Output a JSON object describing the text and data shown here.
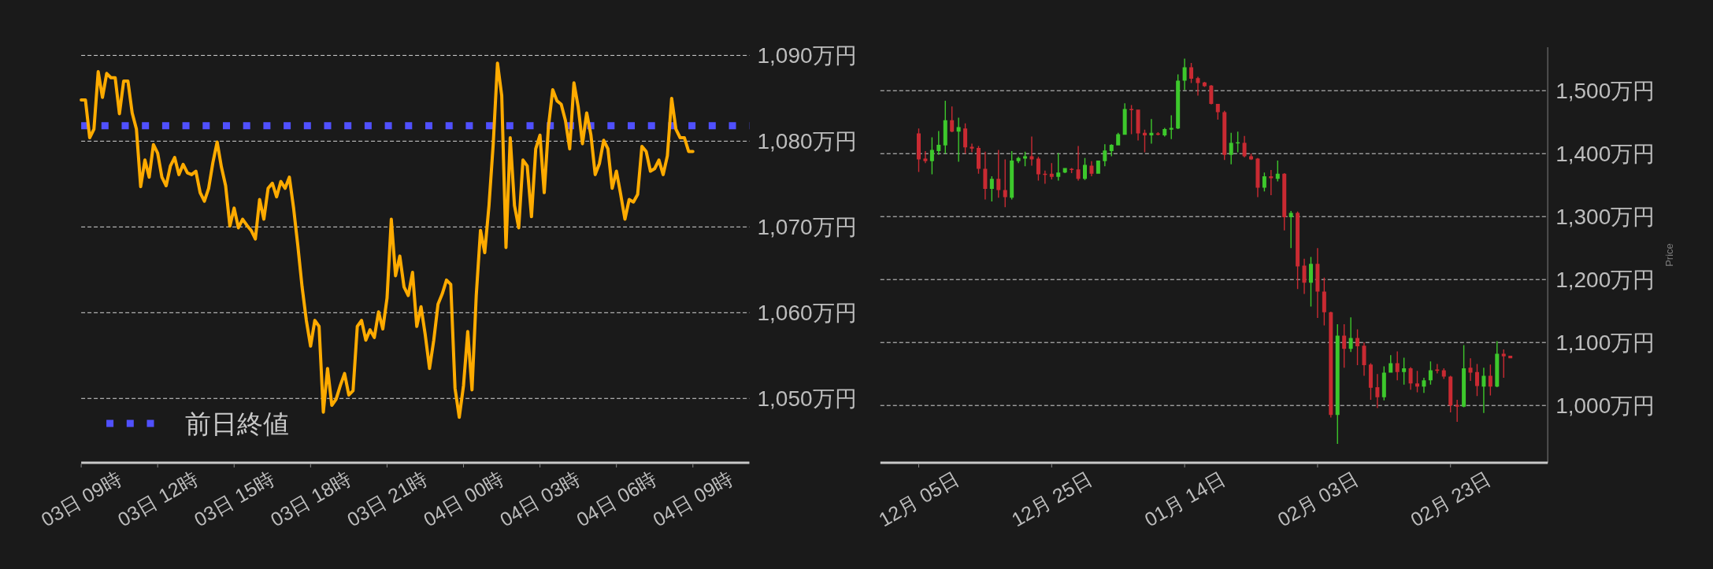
{
  "chart_data": [
    {
      "type": "line",
      "categories": [
        "03日 09時",
        null,
        null,
        null,
        null,
        null,
        null,
        null,
        null,
        null,
        null,
        null,
        null,
        null,
        null,
        null,
        null,
        null,
        "03日 12時",
        null,
        null,
        null,
        null,
        null,
        null,
        null,
        null,
        null,
        null,
        null,
        null,
        null,
        null,
        null,
        null,
        null,
        "03日 15時",
        null,
        null,
        null,
        null,
        null,
        null,
        null,
        null,
        null,
        null,
        null,
        null,
        null,
        null,
        null,
        null,
        null,
        "03日 18時",
        null,
        null,
        null,
        null,
        null,
        null,
        null,
        null,
        null,
        null,
        null,
        null,
        null,
        null,
        null,
        null,
        null,
        "03日 21時",
        null,
        null,
        null,
        null,
        null,
        null,
        null,
        null,
        null,
        null,
        null,
        null,
        null,
        null,
        null,
        null,
        null,
        "04日 00時",
        null,
        null,
        null,
        null,
        null,
        null,
        null,
        null,
        null,
        null,
        null,
        null,
        null,
        null,
        null,
        null,
        null,
        "04日 03時",
        null,
        null,
        null,
        null,
        null,
        null,
        null,
        null,
        null,
        null,
        null,
        null,
        null,
        null,
        null,
        null,
        null,
        "04日 06時",
        null,
        null,
        null,
        null,
        null,
        null,
        null,
        null,
        null,
        null,
        null,
        null,
        null,
        null,
        null,
        null,
        null,
        "04日 09時"
      ],
      "series": [
        {
          "color": "#ffab00",
          "values": [
            1084.8,
            1084.8,
            1080.4,
            1081.4,
            1088.1,
            1085.1,
            1087.9,
            1087.4,
            1087.4,
            1083.2,
            1087.0,
            1087.0,
            1083.3,
            1081.4,
            1074.7,
            1077.8,
            1075.8,
            1079.6,
            1078.6,
            1075.8,
            1074.8,
            1077.1,
            1078.1,
            1076.1,
            1077.3,
            1076.3,
            1076.1,
            1076.5,
            1074.0,
            1073.0,
            1074.5,
            1077.5,
            1079.9,
            1077.0,
            1074.8,
            1070.1,
            1072.2,
            1069.9,
            1070.9,
            1070.2,
            1069.6,
            1068.6,
            1073.2,
            1070.9,
            1074.5,
            1075.1,
            1073.5,
            1075.3,
            1074.5,
            1075.8,
            1072.2,
            1067.8,
            1063.0,
            1059.1,
            1056.1,
            1059.1,
            1058.4,
            1048.4,
            1053.5,
            1049.2,
            1049.9,
            1051.5,
            1052.9,
            1050.4,
            1050.9,
            1058.4,
            1059.1,
            1056.8,
            1058.0,
            1057.1,
            1060.1,
            1058.1,
            1061.7,
            1070.9,
            1064.3,
            1066.6,
            1063.0,
            1062.0,
            1064.7,
            1058.4,
            1060.7,
            1057.4,
            1053.5,
            1056.8,
            1061.0,
            1062.2,
            1063.8,
            1063.3,
            1051.2,
            1047.8,
            1051.5,
            1057.8,
            1051.0,
            1062.0,
            1069.6,
            1067.0,
            1072.5,
            1079.7,
            1089.1,
            1085.3,
            1067.6,
            1080.4,
            1072.5,
            1069.9,
            1077.8,
            1077.1,
            1071.2,
            1079.1,
            1080.7,
            1074.0,
            1081.7,
            1086.0,
            1084.7,
            1084.3,
            1082.4,
            1079.1,
            1086.8,
            1084.0,
            1079.7,
            1083.3,
            1080.7,
            1076.1,
            1077.4,
            1080.1,
            1079.1,
            1074.5,
            1076.5,
            1073.8,
            1070.9,
            1073.2,
            1072.9,
            1073.8,
            1079.4,
            1078.8,
            1076.5,
            1076.8,
            1077.8,
            1076.1,
            1078.3,
            1085.0,
            1081.4,
            1080.4,
            1080.4,
            1078.8,
            1078.8
          ]
        }
      ],
      "ylim": [
        1042.5,
        1090
      ],
      "yticks": [
        {
          "value": 1050,
          "label": "1,050万円"
        },
        {
          "value": 1060,
          "label": "1,060万円"
        },
        {
          "value": 1070,
          "label": "1,070万円"
        },
        {
          "value": 1080,
          "label": "1,080万円"
        },
        {
          "value": 1090,
          "label": "1,090万円"
        }
      ],
      "grid": "y",
      "ref_lines": [
        {
          "axis": "y",
          "value": 1081.8,
          "label": "前日終値",
          "color": "#5050ff",
          "line_style": "dotted"
        }
      ],
      "legend": "bottom left"
    },
    {
      "type": "candlestick",
      "categories": [
        "12月 05日",
        null,
        null,
        null,
        null,
        null,
        null,
        null,
        null,
        null,
        null,
        null,
        null,
        null,
        null,
        null,
        null,
        null,
        null,
        null,
        "12月 25日",
        null,
        null,
        null,
        null,
        null,
        null,
        null,
        null,
        null,
        null,
        null,
        null,
        null,
        null,
        null,
        null,
        null,
        null,
        null,
        "01月 14日",
        null,
        null,
        null,
        null,
        null,
        null,
        null,
        null,
        null,
        null,
        null,
        null,
        null,
        null,
        null,
        null,
        null,
        null,
        null,
        "02月 03日",
        null,
        null,
        null,
        null,
        null,
        null,
        null,
        null,
        null,
        null,
        null,
        null,
        null,
        null,
        null,
        null,
        null,
        null,
        null,
        "02月 23日",
        null,
        null,
        null,
        null,
        null,
        null,
        null,
        null,
        null
      ],
      "ohlc": [
        [
          1432,
          1440,
          1371,
          1391
        ],
        [
          1392,
          1404,
          1385,
          1388
        ],
        [
          1388,
          1426,
          1367,
          1406
        ],
        [
          1404,
          1436,
          1398,
          1414
        ],
        [
          1413,
          1484,
          1400,
          1453
        ],
        [
          1453,
          1475,
          1434,
          1435
        ],
        [
          1435,
          1457,
          1387,
          1442
        ],
        [
          1440,
          1448,
          1400,
          1410
        ],
        [
          1411,
          1416,
          1402,
          1408
        ],
        [
          1409,
          1412,
          1368,
          1376
        ],
        [
          1376,
          1403,
          1327,
          1344
        ],
        [
          1344,
          1364,
          1324,
          1360
        ],
        [
          1360,
          1406,
          1330,
          1342
        ],
        [
          1342,
          1391,
          1315,
          1331
        ],
        [
          1330,
          1404,
          1327,
          1389
        ],
        [
          1388,
          1395,
          1385,
          1393
        ],
        [
          1392,
          1403,
          1380,
          1396
        ],
        [
          1396,
          1427,
          1381,
          1391
        ],
        [
          1392,
          1395,
          1357,
          1367
        ],
        [
          1368,
          1373,
          1352,
          1367
        ],
        [
          1368,
          1385,
          1359,
          1363
        ],
        [
          1363,
          1401,
          1357,
          1370
        ],
        [
          1370,
          1377,
          1369,
          1377
        ],
        [
          1376,
          1377,
          1369,
          1374
        ],
        [
          1375,
          1412,
          1357,
          1360
        ],
        [
          1360,
          1393,
          1358,
          1382
        ],
        [
          1381,
          1388,
          1364,
          1368
        ],
        [
          1368,
          1389,
          1368,
          1389
        ],
        [
          1388,
          1415,
          1380,
          1405
        ],
        [
          1404,
          1415,
          1396,
          1414
        ],
        [
          1413,
          1433,
          1413,
          1431
        ],
        [
          1430,
          1480,
          1430,
          1471
        ],
        [
          1471,
          1477,
          1431,
          1469
        ],
        [
          1470,
          1470,
          1421,
          1432
        ],
        [
          1433,
          1438,
          1402,
          1429
        ],
        [
          1429,
          1455,
          1416,
          1433
        ],
        [
          1432,
          1434,
          1429,
          1430
        ],
        [
          1429,
          1441,
          1427,
          1439
        ],
        [
          1438,
          1461,
          1423,
          1441
        ],
        [
          1440,
          1526,
          1439,
          1516
        ],
        [
          1516,
          1551,
          1501,
          1537
        ],
        [
          1537,
          1544,
          1512,
          1519
        ],
        [
          1520,
          1522,
          1492,
          1512
        ],
        [
          1513,
          1514,
          1506,
          1507
        ],
        [
          1508,
          1509,
          1478,
          1479
        ],
        [
          1479,
          1479,
          1454,
          1466
        ],
        [
          1466,
          1468,
          1390,
          1398
        ],
        [
          1398,
          1433,
          1383,
          1417
        ],
        [
          1417,
          1435,
          1402,
          1418
        ],
        [
          1417,
          1428,
          1394,
          1396
        ],
        [
          1396,
          1400,
          1390,
          1391
        ],
        [
          1392,
          1393,
          1331,
          1346
        ],
        [
          1346,
          1370,
          1340,
          1364
        ],
        [
          1364,
          1374,
          1334,
          1361
        ],
        [
          1360,
          1389,
          1356,
          1368
        ],
        [
          1368,
          1369,
          1278,
          1299
        ],
        [
          1299,
          1309,
          1250,
          1306
        ],
        [
          1306,
          1308,
          1185,
          1221
        ],
        [
          1222,
          1233,
          1177,
          1195
        ],
        [
          1195,
          1236,
          1157,
          1225
        ],
        [
          1225,
          1250,
          1139,
          1181
        ],
        [
          1181,
          1203,
          1127,
          1148
        ],
        [
          1148,
          1149,
          981,
          985
        ],
        [
          985,
          1129,
          939,
          1111
        ],
        [
          1111,
          1129,
          1060,
          1090
        ],
        [
          1090,
          1140,
          1085,
          1107
        ],
        [
          1107,
          1121,
          1064,
          1094
        ],
        [
          1095,
          1100,
          1047,
          1064
        ],
        [
          1065,
          1067,
          1009,
          1028
        ],
        [
          1029,
          1050,
          996,
          1013
        ],
        [
          1013,
          1062,
          1008,
          1052
        ],
        [
          1052,
          1080,
          1052,
          1067
        ],
        [
          1067,
          1086,
          1040,
          1053
        ],
        [
          1053,
          1076,
          1033,
          1059
        ],
        [
          1059,
          1061,
          1025,
          1035
        ],
        [
          1035,
          1055,
          1021,
          1030
        ],
        [
          1030,
          1044,
          1020,
          1040
        ],
        [
          1040,
          1070,
          1033,
          1056
        ],
        [
          1057,
          1066,
          1051,
          1055
        ],
        [
          1056,
          1059,
          1042,
          1046
        ],
        [
          1046,
          1047,
          989,
          1000
        ],
        [
          1001,
          1009,
          974,
          998
        ],
        [
          998,
          1096,
          997,
          1059
        ],
        [
          1060,
          1075,
          1039,
          1052
        ],
        [
          1053,
          1066,
          1015,
          1031
        ],
        [
          1030,
          1060,
          988,
          1047
        ],
        [
          1047,
          1065,
          1016,
          1030
        ],
        [
          1030,
          1102,
          1029,
          1082
        ],
        [
          1082,
          1089,
          1044,
          1078
        ],
        [
          1079,
          1079,
          1075,
          1075
        ]
      ],
      "colors": [
        "#c92a32",
        "#c92a32",
        "#3dc82c",
        "#3dc82c",
        "#3dc82c",
        "#c92a32",
        "#3dc82c",
        "#c92a32",
        "#c92a32",
        "#c92a32",
        "#c92a32",
        "#3dc82c",
        "#c92a32",
        "#c92a32",
        "#3dc82c",
        "#3dc82c",
        "#3dc82c",
        "#c92a32",
        "#c92a32",
        "#c92a32",
        "#c92a32",
        "#3dc82c",
        "#3dc82c",
        "#c92a32",
        "#c92a32",
        "#3dc82c",
        "#c92a32",
        "#3dc82c",
        "#3dc82c",
        "#3dc82c",
        "#3dc82c",
        "#3dc82c",
        "#c92a32",
        "#c92a32",
        "#c92a32",
        "#3dc82c",
        "#c92a32",
        "#3dc82c",
        "#3dc82c",
        "#3dc82c",
        "#3dc82c",
        "#c92a32",
        "#c92a32",
        "#c92a32",
        "#c92a32",
        "#c92a32",
        "#c92a32",
        "#3dc82c",
        "#3dc82c",
        "#c92a32",
        "#c92a32",
        "#c92a32",
        "#3dc82c",
        "#c92a32",
        "#3dc82c",
        "#c92a32",
        "#3dc82c",
        "#c92a32",
        "#c92a32",
        "#3dc82c",
        "#c92a32",
        "#c92a32",
        "#c92a32",
        "#3dc82c",
        "#c92a32",
        "#3dc82c",
        "#c92a32",
        "#c92a32",
        "#c92a32",
        "#c92a32",
        "#3dc82c",
        "#3dc82c",
        "#c92a32",
        "#3dc82c",
        "#c92a32",
        "#c92a32",
        "#3dc82c",
        "#3dc82c",
        "#c92a32",
        "#c92a32",
        "#c92a32",
        "#c92a32",
        "#3dc82c",
        "#c92a32",
        "#c92a32",
        "#3dc82c",
        "#c92a32",
        "#3dc82c",
        "#c92a32",
        "#c92a32"
      ],
      "ylim": [
        909,
        1569
      ],
      "yticks": [
        {
          "value": 1000,
          "label": "1,000万円"
        },
        {
          "value": 1100,
          "label": "1,100万円"
        },
        {
          "value": 1200,
          "label": "1,200万円"
        },
        {
          "value": 1300,
          "label": "1,300万円"
        },
        {
          "value": 1400,
          "label": "1,400万円"
        },
        {
          "value": 1500,
          "label": "1,500万円"
        }
      ],
      "ylabel": "Price",
      "grid": "y"
    }
  ]
}
